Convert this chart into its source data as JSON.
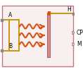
{
  "fig_width": 1.18,
  "fig_height": 1.02,
  "dpi": 100,
  "bg_color": "#ffffff",
  "outer_border_color": "#c07880",
  "outer_bg": "#f8f0f0",
  "orange": "#d85010",
  "gold": "#c8980a",
  "bar_face": "#d09090",
  "bar_edge": "#b06060",
  "port_sq_color": "#888888",
  "tri_edge": "#b08080",
  "tri_face": "#e8d8d8",
  "label_A": "A",
  "label_B": "B",
  "label_H": "H",
  "label_CP": "CP",
  "label_M": "M",
  "hash_color": "#d85010"
}
